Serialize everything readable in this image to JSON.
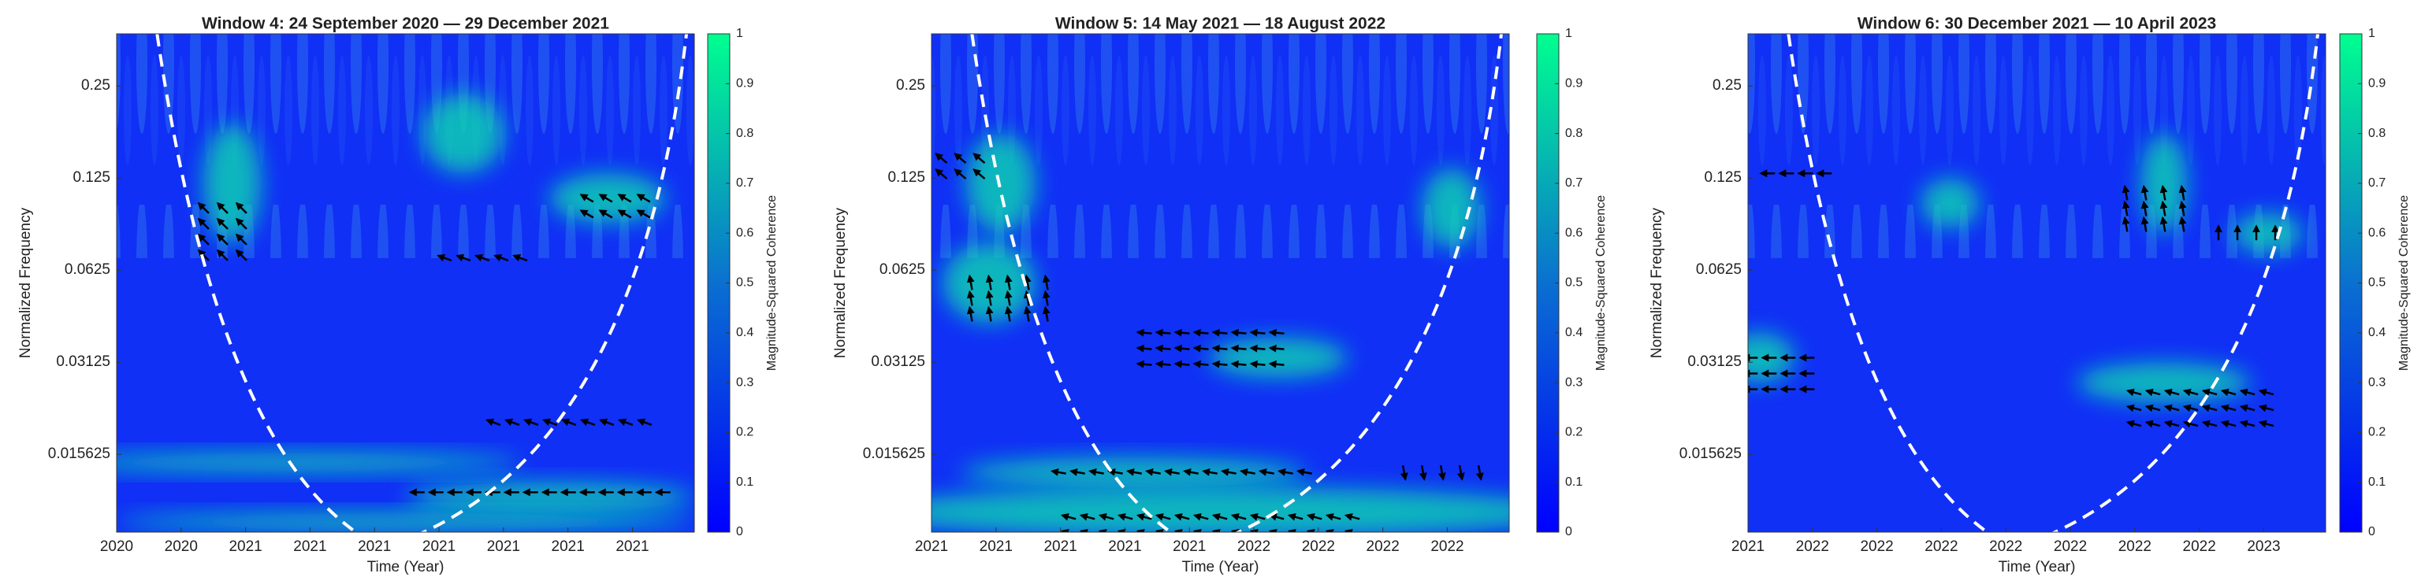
{
  "chart_data": [
    {
      "type": "heatmap",
      "title": "Window 4: 24 September 2020 — 29 December 2021",
      "xlabel": "Time (Year)",
      "ylabel": "Normalized Frequency",
      "categories": [
        "2020",
        "2020",
        "2021",
        "2021",
        "2021",
        "2021",
        "2021",
        "2021",
        "2021"
      ],
      "ylog": true,
      "ylim": [
        0.0087,
        0.37
      ],
      "yticks": [
        0.015625,
        0.03125,
        0.0625,
        0.125,
        0.25
      ],
      "colorbar_label": "Magnitude-Squared Coherence",
      "clim": [
        0,
        1
      ],
      "cticks": [
        0,
        0.1,
        0.2,
        0.3,
        0.4,
        0.5,
        0.6,
        0.7,
        0.8,
        0.9,
        1
      ],
      "colormap": [
        "#0000ff",
        "#0a70d0",
        "#00ff90"
      ]
    },
    {
      "type": "heatmap",
      "title": "Window 5: 14 May 2021 — 18 August 2022",
      "xlabel": "Time (Year)",
      "ylabel": "Normalized Frequency",
      "categories": [
        "2021",
        "2021",
        "2021",
        "2021",
        "2021",
        "2022",
        "2022",
        "2022",
        "2022"
      ],
      "ylog": true,
      "ylim": [
        0.0087,
        0.37
      ],
      "yticks": [
        0.015625,
        0.03125,
        0.0625,
        0.125,
        0.25
      ],
      "colorbar_label": "Magnitude-Squared Coherence",
      "clim": [
        0,
        1
      ],
      "cticks": [
        0,
        0.1,
        0.2,
        0.3,
        0.4,
        0.5,
        0.6,
        0.7,
        0.8,
        0.9,
        1
      ],
      "colormap": [
        "#0000ff",
        "#0a70d0",
        "#00ff90"
      ]
    },
    {
      "type": "heatmap",
      "title": "Window 6: 30 December 2021 — 10 April 2023",
      "xlabel": "Time (Year)",
      "ylabel": "Normalized Frequency",
      "categories": [
        "2021",
        "2022",
        "2022",
        "2022",
        "2022",
        "2022",
        "2022",
        "2022",
        "2023"
      ],
      "ylog": true,
      "ylim": [
        0.0087,
        0.37
      ],
      "yticks": [
        0.015625,
        0.03125,
        0.0625,
        0.125,
        0.25
      ],
      "colorbar_label": "Magnitude-Squared Coherence",
      "clim": [
        0,
        1
      ],
      "cticks": [
        0,
        0.1,
        0.2,
        0.3,
        0.4,
        0.5,
        0.6,
        0.7,
        0.8,
        0.9,
        1
      ],
      "colormap": [
        "#0000ff",
        "#0a70d0",
        "#00ff90"
      ]
    }
  ]
}
